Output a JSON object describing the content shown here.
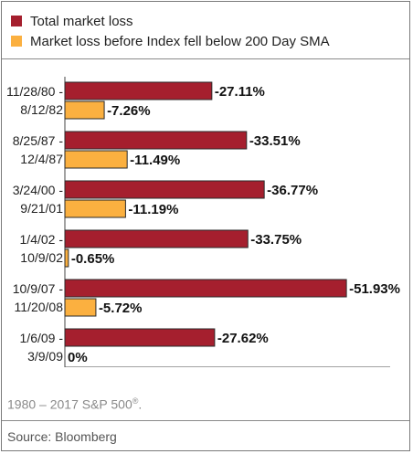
{
  "legend": {
    "total": {
      "label": "Total market loss",
      "color": "#a51f2e"
    },
    "before": {
      "label": "Market loss before Index fell below 200 Day SMA",
      "color": "#fbb040"
    }
  },
  "chart_data": {
    "type": "bar",
    "orientation": "horizontal",
    "groups": [
      {
        "start": "11/28/80 -",
        "end": "8/12/82",
        "total": 27.11,
        "before": 7.26,
        "total_label": "-27.11%",
        "before_label": "-7.26%"
      },
      {
        "start": "8/25/87 -",
        "end": "12/4/87",
        "total": 33.51,
        "before": 11.49,
        "total_label": "-33.51%",
        "before_label": "-11.49%"
      },
      {
        "start": "3/24/00 -",
        "end": "9/21/01",
        "total": 36.77,
        "before": 11.19,
        "total_label": "-36.77%",
        "before_label": "-11.19%"
      },
      {
        "start": "1/4/02 -",
        "end": "10/9/02",
        "total": 33.75,
        "before": 0.65,
        "total_label": "-33.75%",
        "before_label": "-0.65%"
      },
      {
        "start": "10/9/07 -",
        "end": "11/20/08",
        "total": 51.93,
        "before": 5.72,
        "total_label": "-51.93%",
        "before_label": "-5.72%"
      },
      {
        "start": "1/6/09 -",
        "end": "3/9/09",
        "total": 27.62,
        "before": 0,
        "total_label": "-27.62%",
        "before_label": "0%"
      }
    ],
    "xlim": [
      0,
      60
    ],
    "ticks": [
      0,
      10,
      20,
      30,
      40,
      50,
      60
    ],
    "tick_labels": [
      "0%",
      "10%",
      "20%",
      "30%",
      "40%",
      "50%",
      "60%"
    ],
    "grid": false,
    "legend_position": "top-left"
  },
  "footnote": {
    "text": "1980 – 2017 S&P 500",
    "sup": "®",
    "end": "."
  },
  "source": "Source: Bloomberg"
}
